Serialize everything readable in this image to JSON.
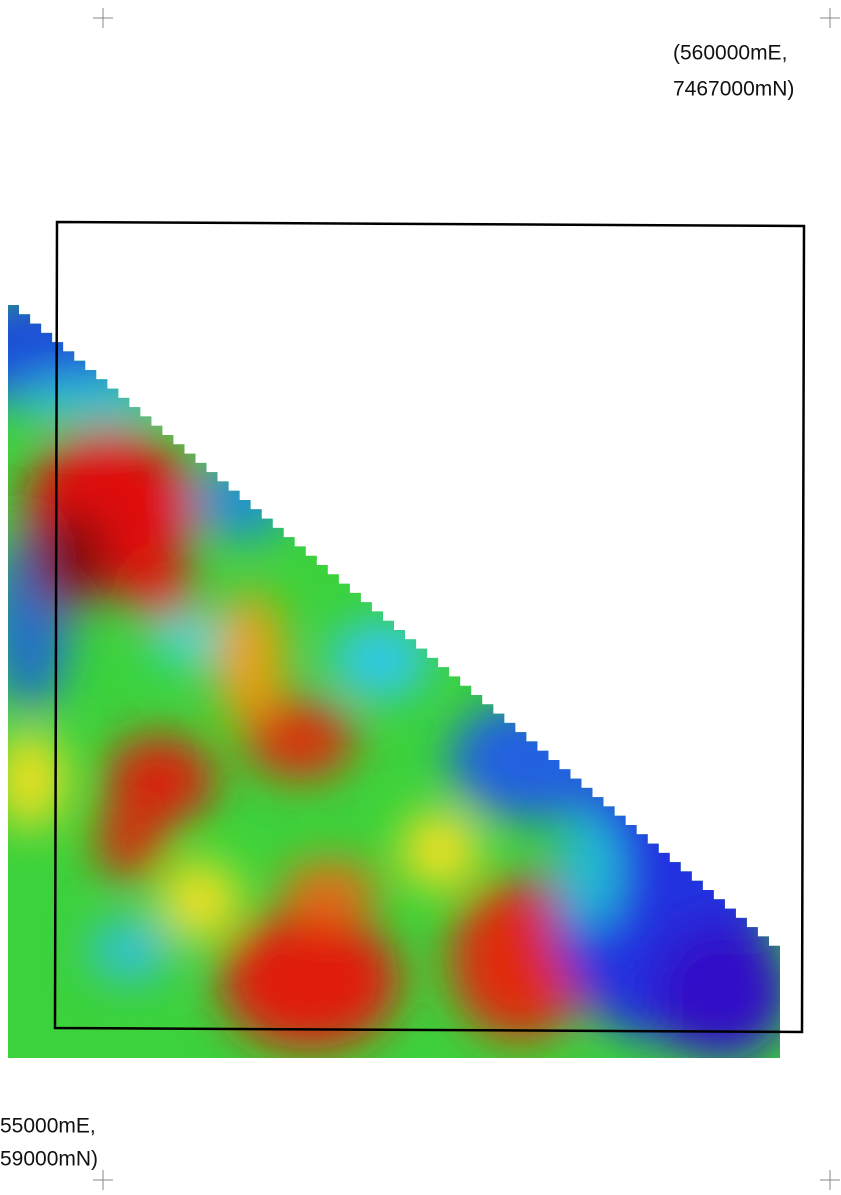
{
  "labels": {
    "top_right": [
      "(560000mE,",
      "7467000mN)"
    ],
    "bottom_left": [
      "55000mE,",
      "59000mN)"
    ]
  }
}
